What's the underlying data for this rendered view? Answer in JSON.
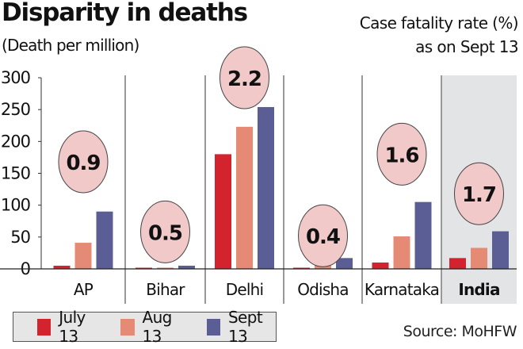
{
  "header": {
    "title": "Disparity in deaths",
    "subtitle": "(Death per million)",
    "cfr_line1": "Case fatality rate (%)",
    "cfr_line2": "as on Sept 13"
  },
  "source": "Source: MoHFW",
  "colors": {
    "july": "#d2232e",
    "aug": "#e58a74",
    "sept": "#5a5e95",
    "bubble_fill": "#f2c9c9",
    "highlight_bg": "#e3e4e6"
  },
  "chart_data": {
    "type": "bar",
    "title": "Disparity in deaths",
    "ylabel": "(Death per million)",
    "xlabel": "",
    "ylim": [
      0,
      300
    ],
    "yticks": [
      0,
      50,
      100,
      150,
      200,
      250,
      300
    ],
    "grid": false,
    "legend_position": "bottom-left",
    "categories": [
      "AP",
      "Bihar",
      "Delhi",
      "Odisha",
      "Karnataka",
      "India"
    ],
    "highlighted_category": "India",
    "series": [
      {
        "name": "July 13",
        "color": "#d2232e",
        "values": [
          5,
          1,
          180,
          1,
          10,
          17
        ]
      },
      {
        "name": "Aug 13",
        "color": "#e58a74",
        "values": [
          41,
          2,
          223,
          5,
          51,
          33
        ]
      },
      {
        "name": "Sept 13",
        "color": "#5a5e95",
        "values": [
          90,
          5,
          254,
          17,
          105,
          59
        ]
      }
    ],
    "annotations": {
      "label": "Case fatality rate (%) as on Sept 13",
      "values": [
        0.9,
        0.5,
        2.2,
        0.4,
        1.6,
        1.7
      ]
    }
  }
}
